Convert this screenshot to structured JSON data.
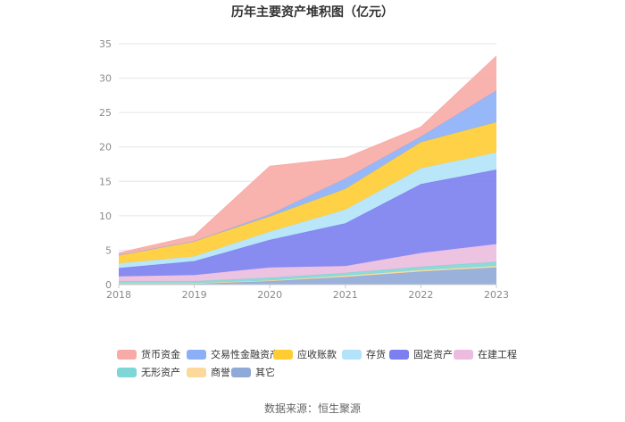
{
  "chart_data": {
    "type": "area",
    "stacked": true,
    "title": "历年主要资产堆积图（亿元）",
    "categories": [
      "2018",
      "2019",
      "2020",
      "2021",
      "2022",
      "2023"
    ],
    "ylim": [
      0,
      35
    ],
    "yticks": [
      0,
      5,
      10,
      15,
      20,
      25,
      30,
      35
    ],
    "grid": true,
    "legend_position": "bottom",
    "series_order_bottom_to_top": [
      "其它",
      "商誉",
      "无形资产",
      "在建工程",
      "固定资产",
      "存货",
      "应收账款",
      "交易性金融资产",
      "货币资金"
    ],
    "series": [
      {
        "name": "货币资金",
        "color": "#f8aba6",
        "values": [
          0.3,
          0.8,
          7.0,
          3.0,
          1.4,
          5.0
        ]
      },
      {
        "name": "交易性金融资产",
        "color": "#8cb0f7",
        "values": [
          0.0,
          0.0,
          0.3,
          1.5,
          0.8,
          4.6
        ]
      },
      {
        "name": "应收账款",
        "color": "#ffcc33",
        "values": [
          1.2,
          2.2,
          2.2,
          3.0,
          3.8,
          4.4
        ]
      },
      {
        "name": "存货",
        "color": "#b3e3fa",
        "values": [
          0.7,
          0.7,
          1.2,
          2.0,
          2.3,
          2.5
        ]
      },
      {
        "name": "固定资产",
        "color": "#7b7ff0",
        "values": [
          1.2,
          2.0,
          4.0,
          6.2,
          10.0,
          10.8
        ]
      },
      {
        "name": "在建工程",
        "color": "#ebbcdf",
        "values": [
          0.7,
          0.9,
          1.5,
          1.0,
          2.0,
          2.6
        ]
      },
      {
        "name": "无形资产",
        "color": "#7fd6d6",
        "values": [
          0.3,
          0.3,
          0.4,
          0.4,
          0.5,
          0.6
        ]
      },
      {
        "name": "商誉",
        "color": "#fcd99a",
        "values": [
          0.1,
          0.1,
          0.1,
          0.2,
          0.2,
          0.2
        ]
      },
      {
        "name": "其它",
        "color": "#8fa9d8",
        "values": [
          0.1,
          0.1,
          0.5,
          1.1,
          1.9,
          2.5
        ]
      }
    ]
  },
  "source_text": "数据来源：恒生聚源"
}
